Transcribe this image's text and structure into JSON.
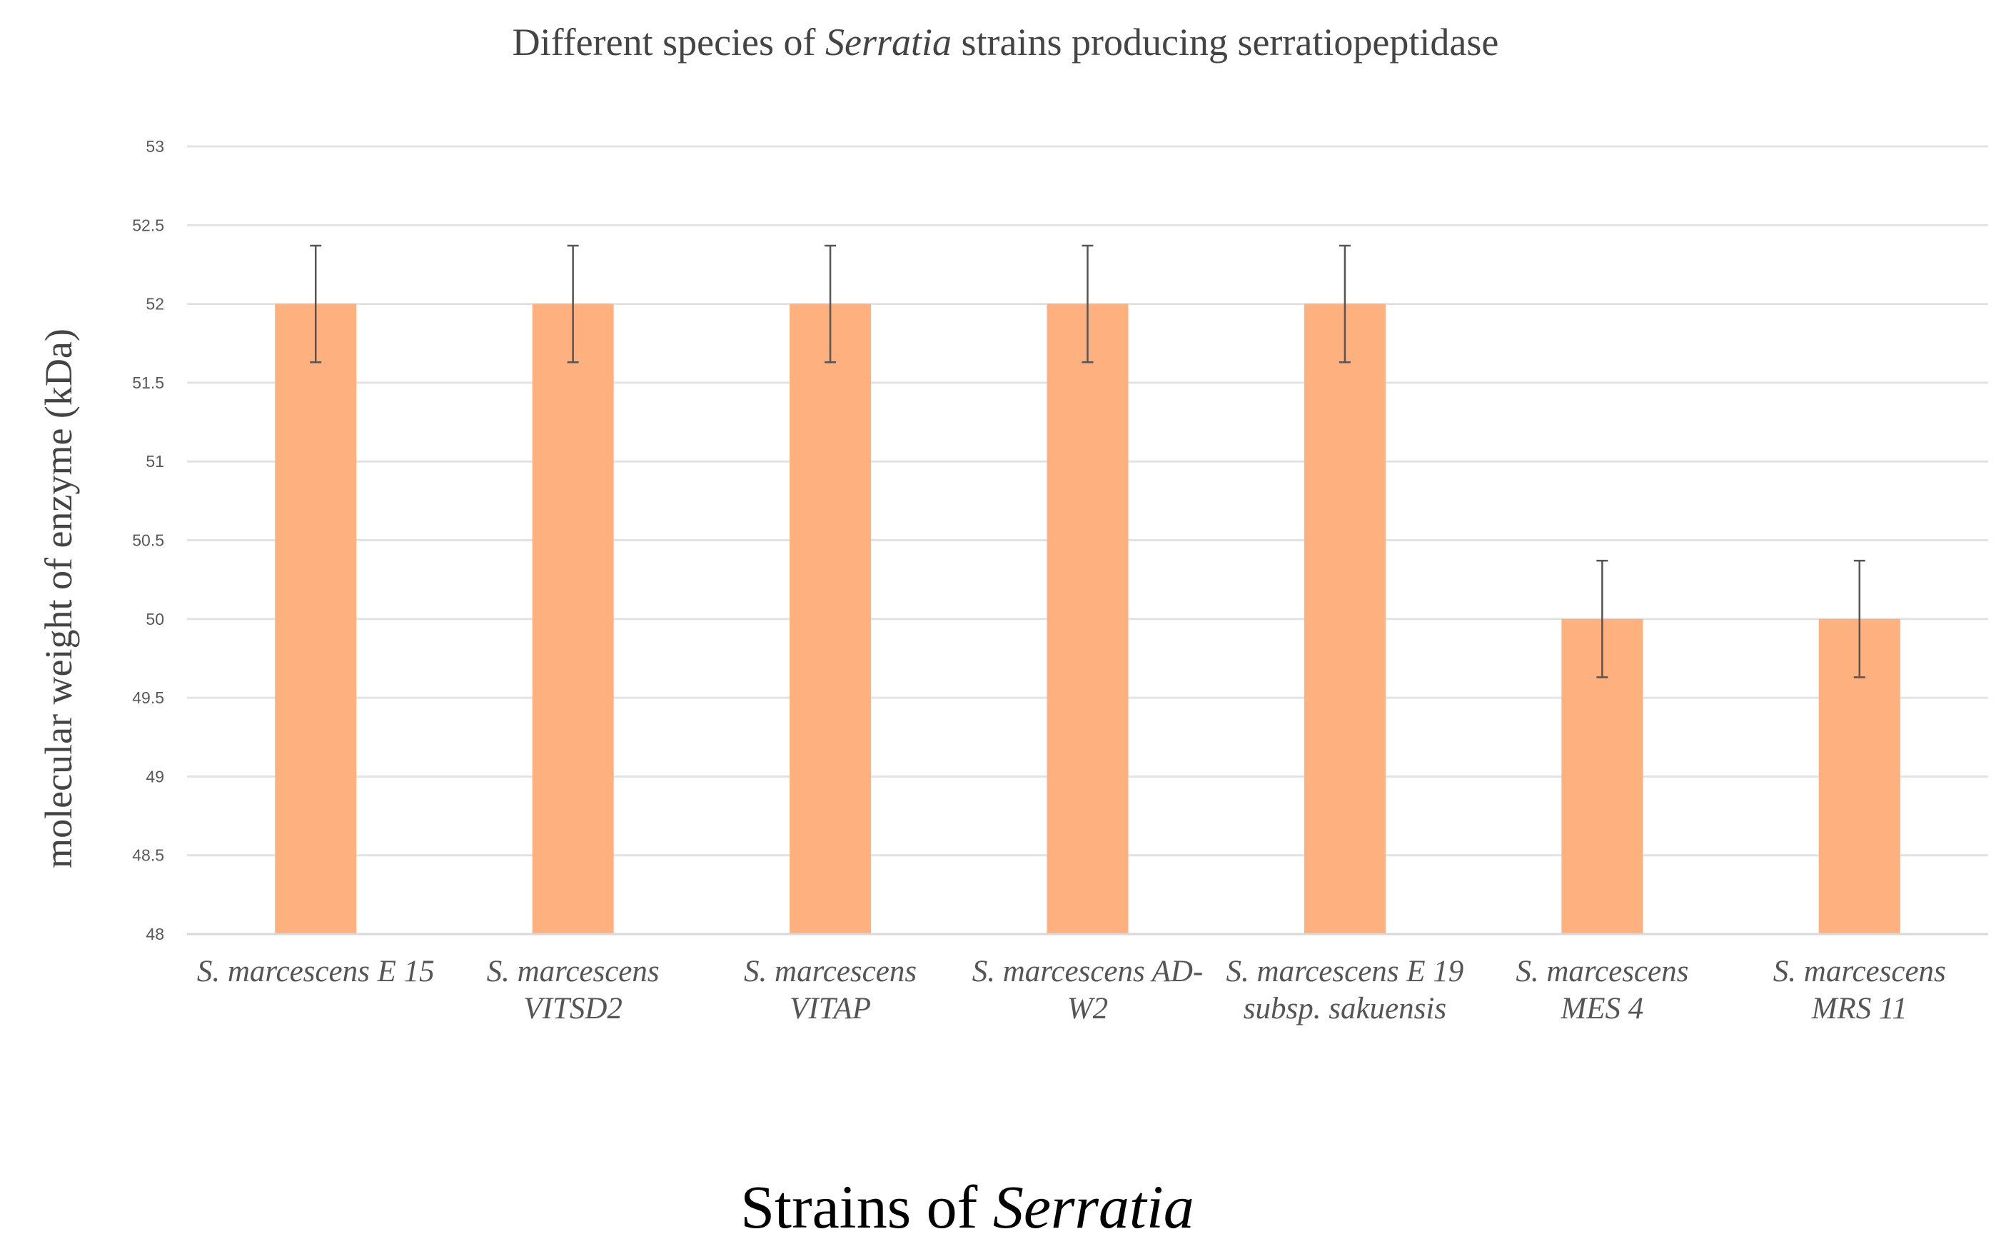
{
  "chart_data": {
    "type": "bar",
    "title": {
      "prefix": "Different species of ",
      "italic": "Serratia",
      "suffix": " strains producing serratiopeptidase"
    },
    "xlabel": {
      "prefix": "Strains of ",
      "italic": "Serratia"
    },
    "ylabel": "molecular weight of enzyme  (kDa)",
    "categories": [
      [
        "S. marcescens E 15"
      ],
      [
        "S. marcescens",
        "VITSD2"
      ],
      [
        "S. marcescens",
        "VITAP"
      ],
      [
        "S. marcescens AD-",
        "W2"
      ],
      [
        "S. marcescens E 19",
        "subsp. sakuensis"
      ],
      [
        "S. marcescens",
        "MES 4"
      ],
      [
        "S. marcescens",
        "MRS 11"
      ]
    ],
    "values": [
      52,
      52,
      52,
      52,
      52,
      50,
      50
    ],
    "error": [
      0.37,
      0.37,
      0.37,
      0.37,
      0.37,
      0.37,
      0.37
    ],
    "ylim": [
      48,
      53
    ],
    "yticks": [
      "48",
      "48.5",
      "49",
      "49.5",
      "50",
      "50.5",
      "51",
      "51.5",
      "52",
      "52.5",
      "53"
    ],
    "grid": true,
    "bar_color": "#ffb07f",
    "grid_color": "#e3e3e3",
    "errorbar_color": "#555555"
  }
}
